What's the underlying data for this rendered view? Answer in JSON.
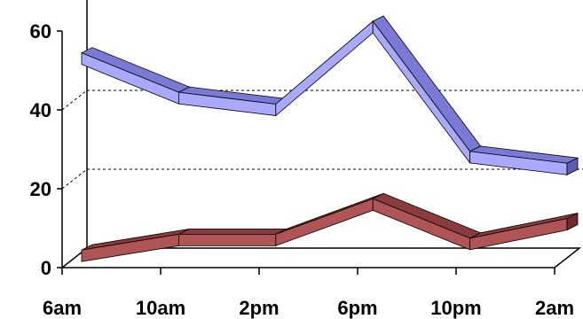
{
  "chart_data": {
    "type": "line",
    "style": "3d-ribbon",
    "categories": [
      "6am",
      "10am",
      "2pm",
      "6pm",
      "10pm",
      "2am"
    ],
    "series": [
      {
        "values": [
          53,
          43,
          40,
          61,
          28,
          25
        ],
        "color": "#a9a9ff",
        "top_color": "#7a7ad6",
        "side_color": "#5c5cb0"
      },
      {
        "values": [
          3,
          7,
          7,
          16,
          6,
          11
        ],
        "color": "#b05555",
        "top_color": "#8a3c3c",
        "side_color": "#6e2a2a"
      }
    ],
    "y_ticks": [
      "0",
      "20",
      "40",
      "60"
    ],
    "ylim": [
      0,
      60
    ],
    "grid": true
  }
}
